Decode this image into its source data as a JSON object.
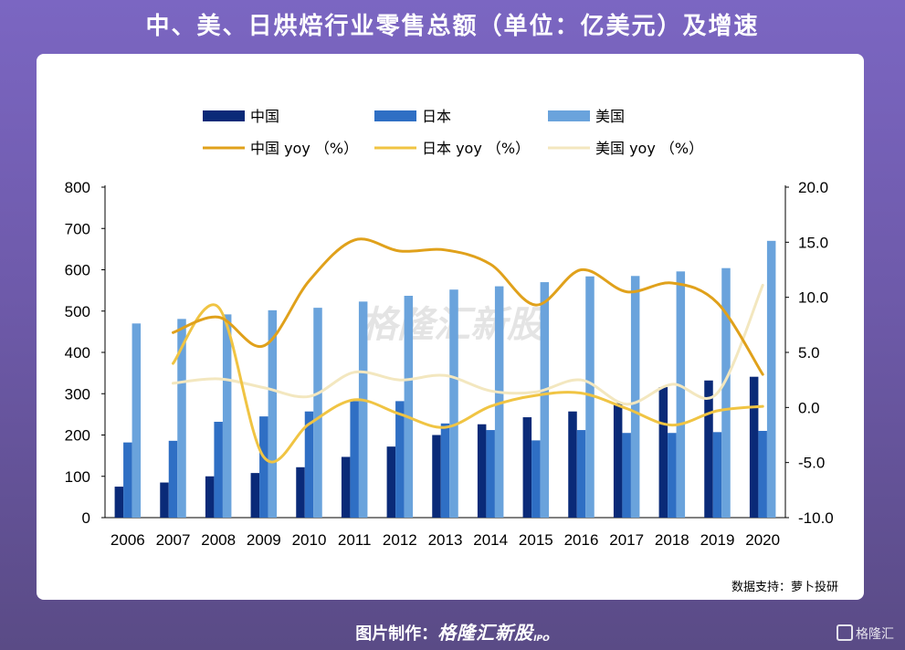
{
  "header": {
    "title": "中、美、日烘焙行业零售总额（单位：亿美元）及增速"
  },
  "footer": {
    "label": "图片制作：",
    "brand": "格隆汇新股",
    "brand_suffix": "IPO"
  },
  "watermark": {
    "center_text": "格隆汇新股",
    "corner_text": "格隆汇"
  },
  "colors": {
    "china_bar": "#0a2a78",
    "japan_bar": "#2f6fc4",
    "us_bar": "#6aa3dc",
    "china_line": "#e0a11b",
    "japan_line": "#f0c443",
    "us_line": "#f3e7bf",
    "background": "#6e5aaa"
  },
  "chart_data": {
    "type": "bar",
    "title": "中、美、日烘焙行业零售总额（单位：亿美元）及增速",
    "source": "数据支持：萝卜投研",
    "categories": [
      "2006",
      "2007",
      "2008",
      "2009",
      "2010",
      "2011",
      "2012",
      "2013",
      "2014",
      "2015",
      "2016",
      "2017",
      "2018",
      "2019",
      "2020"
    ],
    "y_left": {
      "min": 0,
      "max": 800,
      "ticks": [
        "0",
        "100",
        "200",
        "300",
        "400",
        "500",
        "600",
        "700",
        "800"
      ]
    },
    "y_right": {
      "min": -10,
      "max": 20,
      "ticks": [
        "-10.0",
        "-5.0",
        "0.0",
        "5.0",
        "10.0",
        "15.0",
        "20.0"
      ]
    },
    "legend_position": "top",
    "bars": [
      {
        "name": "中国",
        "color": "#0a2a78",
        "values": [
          75,
          85,
          100,
          108,
          122,
          147,
          172,
          200,
          226,
          243,
          257,
          277,
          316,
          332,
          341
        ]
      },
      {
        "name": "日本",
        "color": "#2f6fc4",
        "values": [
          182,
          186,
          232,
          245,
          257,
          282,
          282,
          228,
          212,
          187,
          212,
          205,
          205,
          207,
          210
        ]
      },
      {
        "name": "美国",
        "color": "#6aa3dc",
        "values": [
          470,
          481,
          492,
          502,
          508,
          523,
          537,
          552,
          560,
          570,
          584,
          585,
          596,
          604,
          670
        ]
      }
    ],
    "lines": [
      {
        "name": "中国 yoy （%）",
        "color": "#e0a11b",
        "values": [
          null,
          6.8,
          8.2,
          5.6,
          11.5,
          15.2,
          14.2,
          14.3,
          13.0,
          9.3,
          12.5,
          10.5,
          11.3,
          9.5,
          3.0
        ]
      },
      {
        "name": "日本 yoy （%）",
        "color": "#f0c443",
        "values": [
          null,
          4.0,
          9.1,
          -4.5,
          -1.5,
          0.7,
          -0.6,
          -1.8,
          0.1,
          1.1,
          1.3,
          -0.1,
          -1.6,
          -0.3,
          0.1
        ]
      },
      {
        "name": "美国 yoy （%）",
        "color": "#f3e7bf",
        "values": [
          null,
          2.2,
          2.6,
          1.8,
          1.0,
          3.2,
          2.5,
          2.9,
          1.5,
          1.4,
          2.5,
          0.3,
          2.1,
          1.3,
          11.1
        ]
      }
    ]
  }
}
